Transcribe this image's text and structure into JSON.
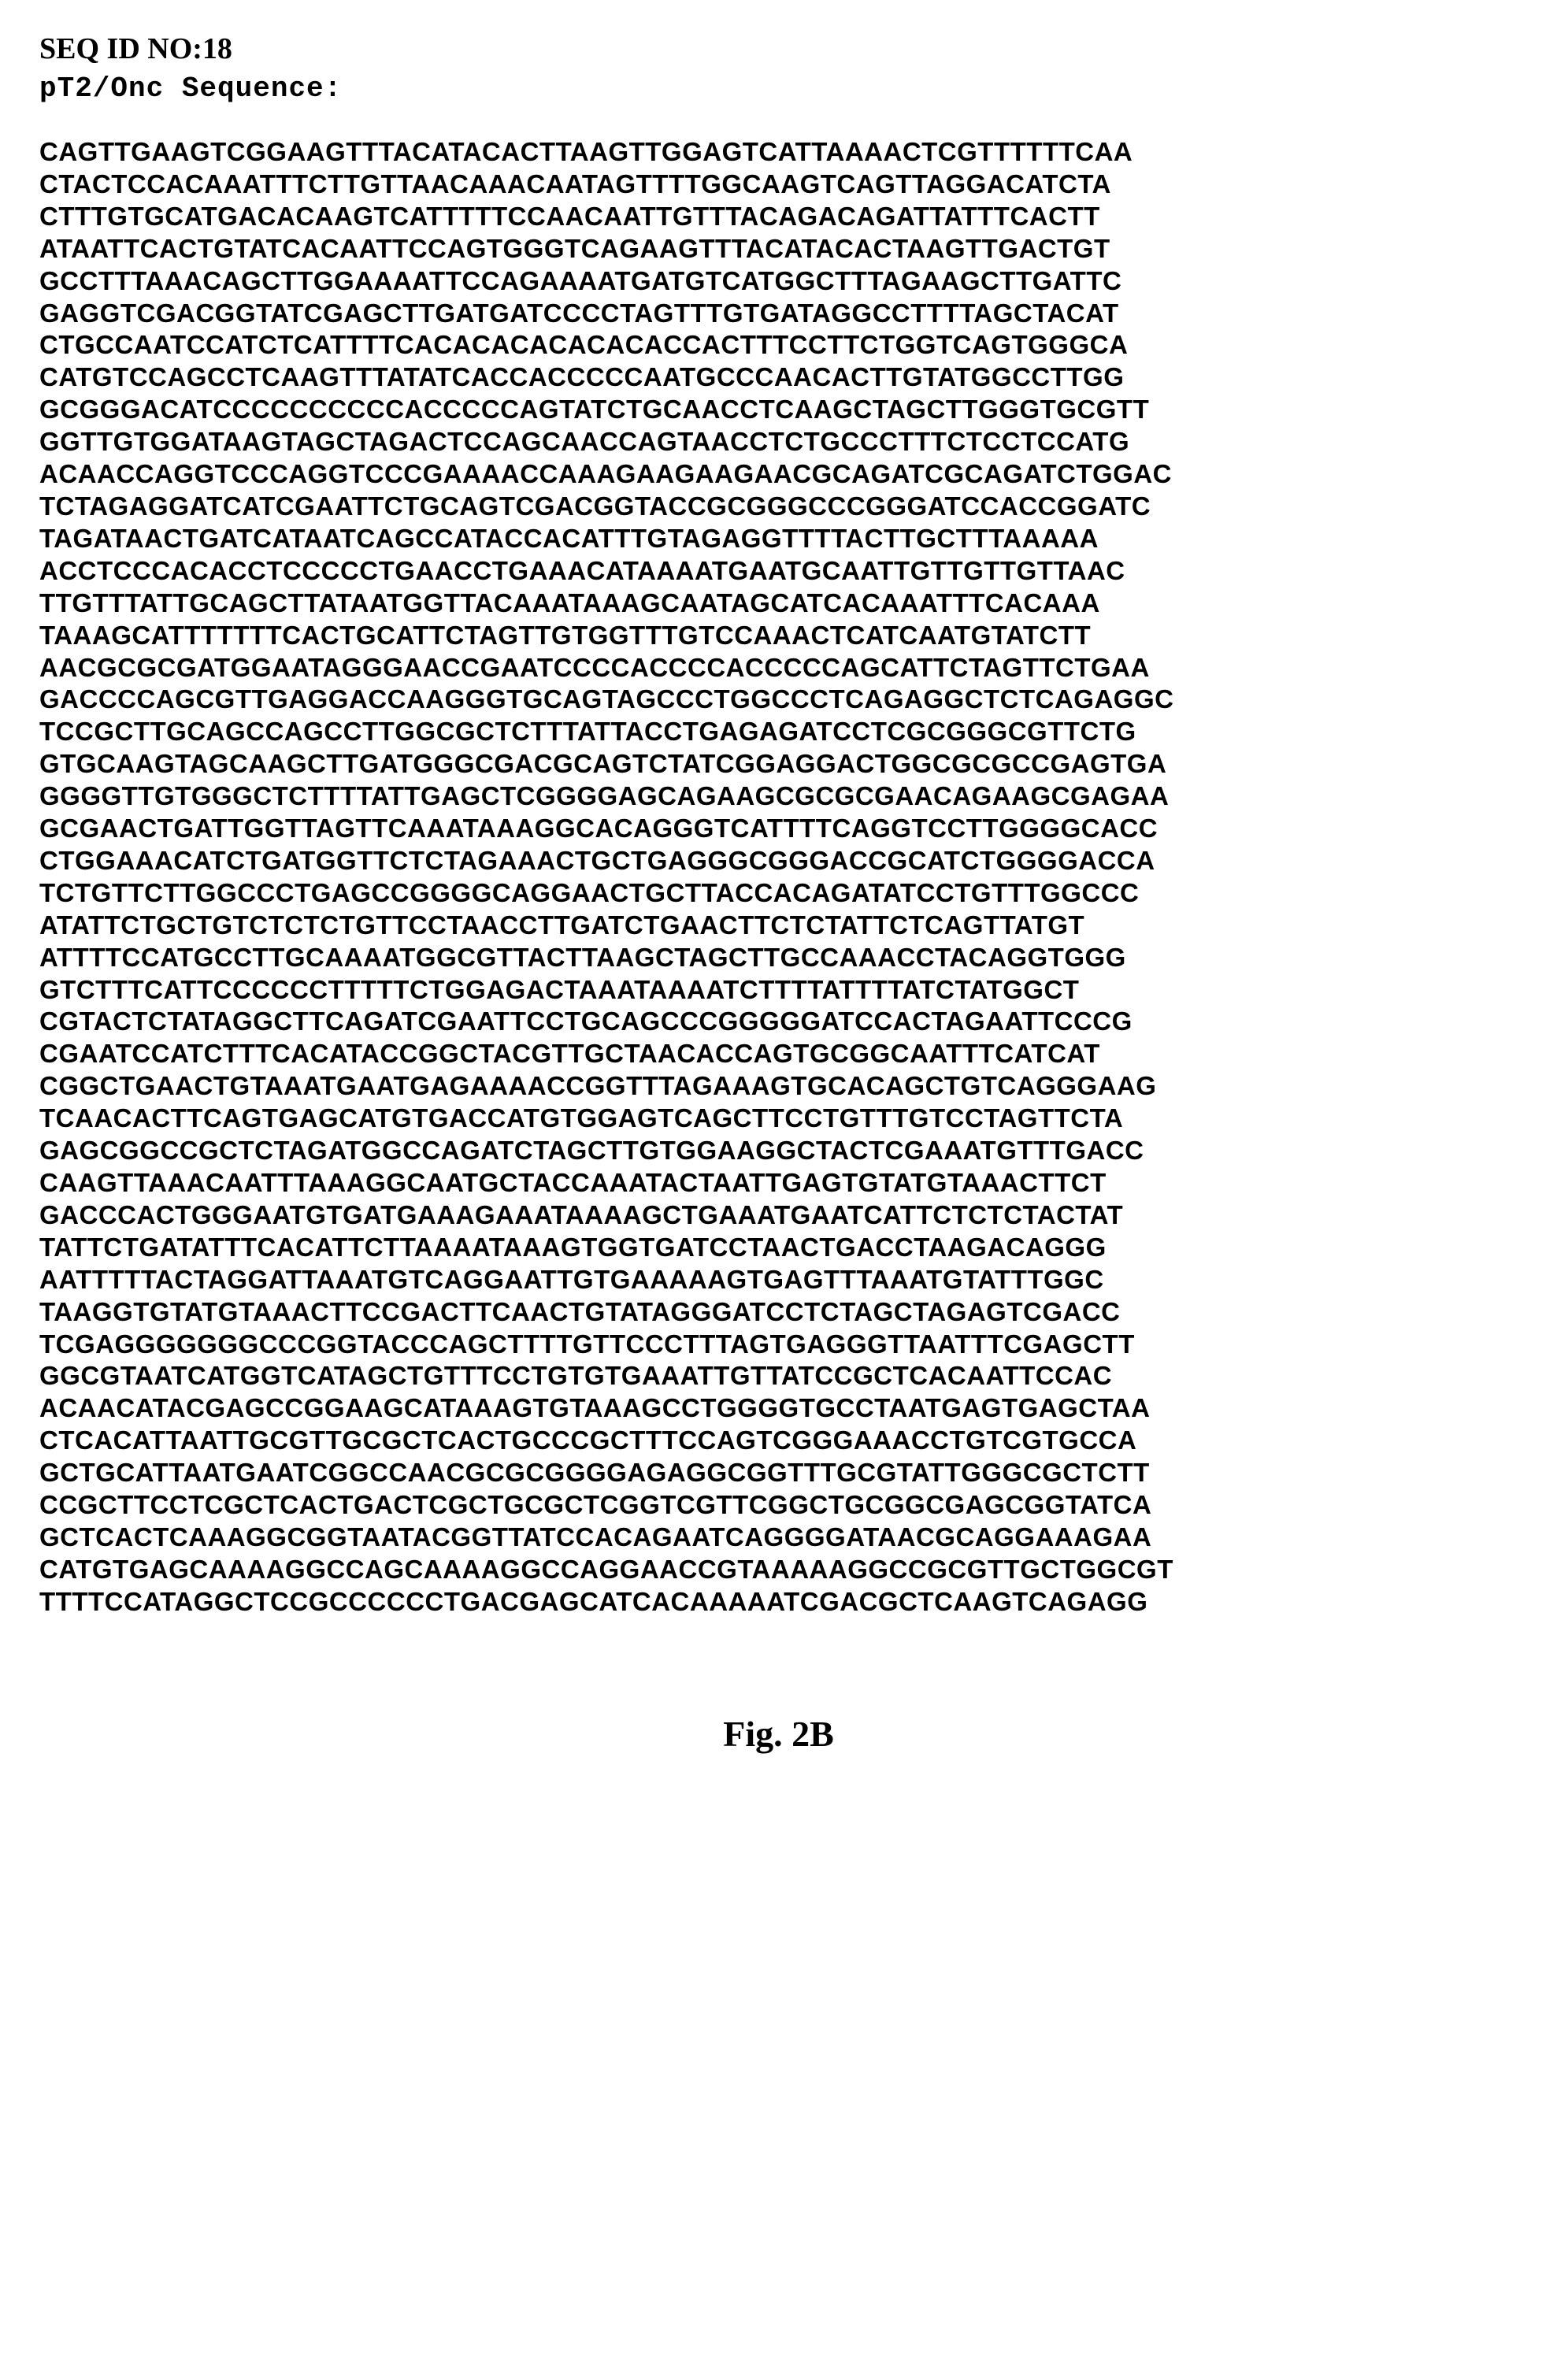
{
  "header": {
    "title": "SEQ ID NO:18",
    "subtitle": "pT2/Onc Sequence:"
  },
  "sequence_lines": [
    "CAGTTGAAGTCGGAAGTTTACATACACTTAAGTTGGAGTCATTAAAACTCGTTTTTTCAA",
    "CTACTCCACAAATTTCTTGTTAACAAACAATAGTTTTGGCAAGTCAGTTAGGACATCTA",
    "CTTTGTGCATGACACAAGTCATTTTTCCAACAATTGTTTACAGACAGATTATTTCACTT",
    "ATAATTCACTGTATCACAATTCCAGTGGGTCAGAAGTTTACATACACTAAGTTGACTGT",
    "GCCTTTAAACAGCTTGGAAAATTCCAGAAAATGATGTCATGGCTTTAGAAGCTTGATTC",
    "GAGGTCGACGGTATCGAGCTTGATGATCCCCTAGTTTGTGATAGGCCTTTTAGCTACAT",
    "CTGCCAATCCATCTCATTTTCACACACACACACACCACTTTCCTTCTGGTCAGTGGGCA",
    "CATGTCCAGCCTCAAGTTTATATCACCACCCCCAATGCCCAACACTTGTATGGCCTTGG",
    "GCGGGACATCCCCCCCCCCACCCCCAGTATCTGCAACCTCAAGCTAGCTTGGGTGCGTT",
    "GGTTGTGGATAAGTAGCTAGACTCCAGCAACCAGTAACCTCTGCCCTTTCTCCTCCATG",
    "ACAACCAGGTCCCAGGTCCCGAAAACCAAAGAAGAAGAACGCAGATCGCAGATCTGGAC",
    "TCTAGAGGATCATCGAATTCTGCAGTCGACGGTACCGCGGGCCCGGGATCCACCGGATC",
    "TAGATAACTGATCATAATCAGCCATACCACATTTGTAGAGGTTTTACTTGCTTTAAAAA",
    "ACCTCCCACACCTCCCCCTGAACCTGAAACATAAAATGAATGCAATTGTTGTTGTTAAC",
    "TTGTTTATTGCAGCTTATAATGGTTACAAATAAAGCAATAGCATCACAAATTTCACAAA",
    "TAAAGCATTTTTTTCACTGCATTCTAGTTGTGGTTTGTCCAAACTCATCAATGTATCTT",
    "AACGCGCGATGGAATAGGGAACCGAATCCCCACCCCACCCCCAGCATTCTAGTTCTGAA",
    "GACCCCAGCGTTGAGGACCAAGGGTGCAGTAGCCCTGGCCCTCAGAGGCTCTCAGAGGC",
    "TCCGCTTGCAGCCAGCCTTGGCGCTCTTTATTACCTGAGAGATCCTCGCGGGCGTTCTG",
    "GTGCAAGTAGCAAGCTTGATGGGCGACGCAGTCTATCGGAGGACTGGCGCGCCGAGTGA",
    "GGGGTTGTGGGCTCTTTTATTGAGCTCGGGGAGCAGAAGCGCGCGAACAGAAGCGAGAA",
    "GCGAACTGATTGGTTAGTTCAAATAAAGGCACAGGGTCATTTTCAGGTCCTTGGGGCACC",
    "CTGGAAACATCTGATGGTTCTCTAGAAACTGCTGAGGGCGGGACCGCATCTGGGGACCA",
    "TCTGTTCTTGGCCCTGAGCCGGGGCAGGAACTGCTTACCACAGATATCCTGTTTGGCCC",
    "ATATTCTGCTGTCTCTCTGTTCCTAACCTTGATCTGAACTTCTCTATTCTCAGTTATGT",
    "ATTTTCCATGCCTTGCAAAATGGCGTTACTTAAGCTAGCTTGCCAAACCTACAGGTGGG",
    "GTCTTTCATTCCCCCCTTTTTCTGGAGACTAAATAAAATCTTTTATTTTATCTATGGCT",
    "CGTACTCTATAGGCTTCAGATCGAATTCCTGCAGCCCGGGGGATCCACTAGAATTCCCG",
    "CGAATCCATCTTTCACATACCGGCTACGTTGCTAACACCAGTGCGGCAATTTCATCAT",
    "CGGCTGAACTGTAAATGAATGAGAAAACCGGTTTAGAAAGTGCACAGCTGTCAGGGAAG",
    "TCAACACTTCAGTGAGCATGTGACCATGTGGAGTCAGCTTCCTGTTTGTCCTAGTTCTA",
    "GAGCGGCCGCTCTAGATGGCCAGATCTAGCTTGTGGAAGGCTACTCGAAATGTTTGACC",
    "CAAGTTAAACAATTTAAAGGCAATGCTACCAAATACTAATTGAGTGTATGTAAACTTCT",
    "GACCCACTGGGAATGTGATGAAAGAAATAAAAGCTGAAATGAATCATTCTCTCTACTAT",
    "TATTCTGATATTTCACATTCTTAAAATAAAGTGGTGATCCTAACTGACCTAAGACAGGG",
    "AATTTTTACTAGGATTAAATGTCAGGAATTGTGAAAAAGTGAGTTTAAATGTATTTGGC",
    "TAAGGTGTATGTAAACTTCCGACTTCAACTGTATAGGGATCCTCTAGCTAGAGTCGACC",
    "TCGAGGGGGGGCCCGGTACCCAGCTTTTGTTCCCTTTAGTGAGGGTTAATTTCGAGCTT",
    "GGCGTAATCATGGTCATAGCTGTTTCCTGTGTGAAATTGTTATCCGCTCACAATTCCAC",
    "ACAACATACGAGCCGGAAGCATAAAGTGTAAAGCCTGGGGTGCCTAATGAGTGAGCTAA",
    "CTCACATTAATTGCGTTGCGCTCACTGCCCGCTTTCCAGTCGGGAAACCTGTCGTGCCA",
    "GCTGCATTAATGAATCGGCCAACGCGCGGGGAGAGGCGGTTTGCGTATTGGGCGCTCTT",
    "CCGCTTCCTCGCTCACTGACTCGCTGCGCTCGGTCGTTCGGCTGCGGCGAGCGGTATCA",
    "GCTCACTCAAAGGCGGTAATACGGTTATCCACAGAATCAGGGGATAACGCAGGAAAGAA",
    "CATGTGAGCAAAAGGCCAGCAAAAGGCCAGGAACCGTAAAAAGGCCGCGTTGCTGGCGT",
    "TTTTCCATAGGCTCCGCCCCCCTGACGAGCATCACAAAAATCGACGCTCAAGTCAGAGG"
  ],
  "figure": {
    "label": "Fig. 2B"
  }
}
